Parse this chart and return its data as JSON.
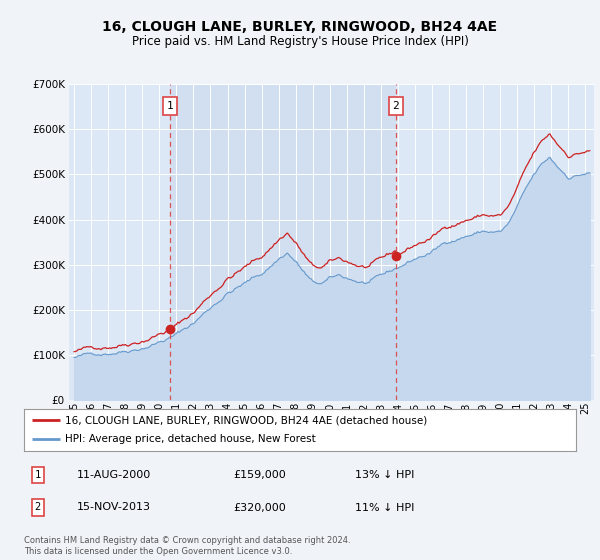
{
  "title": "16, CLOUGH LANE, BURLEY, RINGWOOD, BH24 4AE",
  "subtitle": "Price paid vs. HM Land Registry's House Price Index (HPI)",
  "legend_label_red": "16, CLOUGH LANE, BURLEY, RINGWOOD, BH24 4AE (detached house)",
  "legend_label_blue": "HPI: Average price, detached house, New Forest",
  "annotation1_label": "1",
  "annotation1_date": "11-AUG-2000",
  "annotation1_price": "£159,000",
  "annotation1_hpi": "13% ↓ HPI",
  "annotation2_label": "2",
  "annotation2_date": "15-NOV-2013",
  "annotation2_price": "£320,000",
  "annotation2_hpi": "11% ↓ HPI",
  "footer": "Contains HM Land Registry data © Crown copyright and database right 2024.\nThis data is licensed under the Open Government Licence v3.0.",
  "sale1_year": 2000.617,
  "sale1_price": 159000,
  "sale2_year": 2013.874,
  "sale2_price": 320000,
  "ylim": [
    0,
    700000
  ],
  "xlim_start": 1994.7,
  "xlim_end": 2025.5,
  "fig_bg": "#f0f4f8",
  "plot_bg": "#dce8f5",
  "shade_bg": "#ccdaee",
  "hpi_line_color": "#6699cc",
  "hpi_fill_color": "#c5d8ee",
  "sale_color": "#cc2222",
  "grid_color": "white",
  "vline_color": "#dd4444"
}
